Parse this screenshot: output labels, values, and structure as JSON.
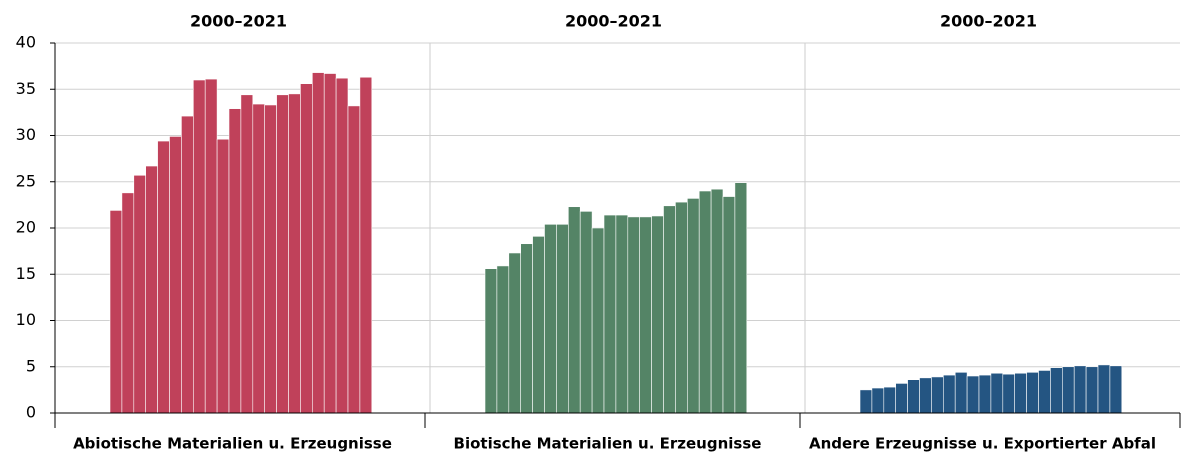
{
  "chart_data": [
    {
      "type": "bar",
      "title": "2000–2021",
      "xlabel": "Abiotische Materialien u. Erzeugnisse",
      "color": "#c0415a",
      "values": [
        21.9,
        23.8,
        25.7,
        26.7,
        29.4,
        29.9,
        32.1,
        36.0,
        36.1,
        29.6,
        32.9,
        34.4,
        33.4,
        33.3,
        34.4,
        34.5,
        35.6,
        36.8,
        36.7,
        36.2,
        33.2,
        36.3
      ],
      "ylim": [
        0,
        40
      ],
      "yticks": [
        0,
        5,
        10,
        15,
        20,
        25,
        30,
        35,
        40
      ],
      "grid": true
    },
    {
      "type": "bar",
      "title": "2000–2021",
      "xlabel": "Biotische Materialien u. Erzeugnisse",
      "color": "#548466",
      "values": [
        15.6,
        15.9,
        17.3,
        18.3,
        19.1,
        20.4,
        20.4,
        22.3,
        21.8,
        20.0,
        21.4,
        21.4,
        21.2,
        21.2,
        21.3,
        22.4,
        22.8,
        23.2,
        24.0,
        24.2,
        23.4,
        24.9
      ],
      "ylim": [
        0,
        40
      ],
      "yticks": [
        0,
        5,
        10,
        15,
        20,
        25,
        30,
        35,
        40
      ],
      "grid": true
    },
    {
      "type": "bar",
      "title": "2000–2021",
      "xlabel": "Andere Erzeugnisse u. Exportierter Abfal",
      "color": "#245582",
      "values": [
        2.5,
        2.7,
        2.8,
        3.2,
        3.6,
        3.8,
        3.9,
        4.1,
        4.4,
        4.0,
        4.1,
        4.3,
        4.2,
        4.3,
        4.4,
        4.6,
        4.9,
        5.0,
        5.1,
        5.0,
        5.2,
        5.1
      ],
      "ylim": [
        0,
        40
      ],
      "yticks": [
        0,
        5,
        10,
        15,
        20,
        25,
        30,
        35,
        40
      ],
      "grid": true
    }
  ]
}
